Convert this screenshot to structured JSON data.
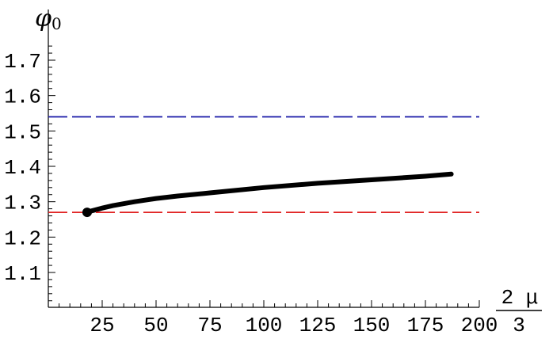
{
  "chart_data": {
    "type": "line",
    "title": "",
    "ylabel_symbol": "φ",
    "ylabel_subscript": "0",
    "xlabel_numerator": "2 μ",
    "xlabel_denominator": "3",
    "xlim": [
      0,
      200
    ],
    "ylim": [
      1.0,
      1.75
    ],
    "x_ticks": [
      25,
      50,
      75,
      100,
      125,
      150,
      175,
      200
    ],
    "x_tick_labels": [
      "25",
      "50",
      "75",
      "100",
      "125",
      "150",
      "175",
      "200"
    ],
    "y_ticks": [
      1.1,
      1.2,
      1.3,
      1.4,
      1.5,
      1.6,
      1.7
    ],
    "y_tick_labels": [
      "1.1",
      "1.2",
      "1.3",
      "1.4",
      "1.5",
      "1.6",
      "1.7"
    ],
    "grid": false,
    "series": [
      {
        "style": "solid-thick",
        "color": "#000000",
        "x": [
          18,
          20,
          25,
          30,
          40,
          50,
          60,
          75,
          100,
          125,
          150,
          175,
          187
        ],
        "y": [
          1.27,
          1.274,
          1.282,
          1.289,
          1.3,
          1.309,
          1.316,
          1.325,
          1.34,
          1.352,
          1.362,
          1.372,
          1.378
        ]
      },
      {
        "style": "dashed",
        "color": "#1a1aa8",
        "x": [
          0,
          200
        ],
        "y": [
          1.54,
          1.54
        ]
      },
      {
        "style": "dashed",
        "color": "#e02020",
        "x": [
          0,
          200
        ],
        "y": [
          1.27,
          1.27
        ]
      }
    ],
    "points": [
      {
        "x": 18,
        "y": 1.27,
        "color": "#000000"
      }
    ]
  }
}
